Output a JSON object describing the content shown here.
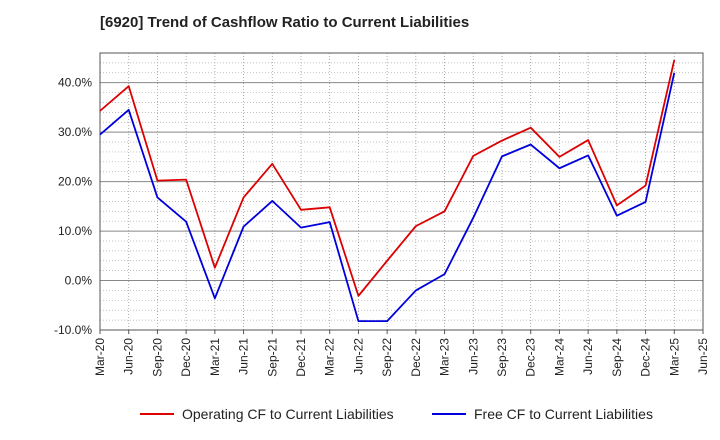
{
  "chart_data": {
    "type": "line",
    "title": "[6920]  Trend of Cashflow Ratio to Current Liabilities",
    "x": [
      "Mar-20",
      "Jun-20",
      "Sep-20",
      "Dec-20",
      "Mar-21",
      "Jun-21",
      "Sep-21",
      "Dec-21",
      "Mar-22",
      "Jun-22",
      "Sep-22",
      "Dec-22",
      "Mar-23",
      "Jun-23",
      "Sep-23",
      "Dec-23",
      "Mar-24",
      "Jun-24",
      "Sep-24",
      "Dec-24",
      "Mar-25",
      "Jun-25"
    ],
    "ylim": [
      -10,
      46
    ],
    "yticks": [
      -10,
      0,
      10,
      20,
      30,
      40
    ],
    "ytick_labels": [
      "-10.0%",
      "0.0%",
      "10.0%",
      "20.0%",
      "30.0%",
      "40.0%"
    ],
    "grid": true,
    "legend_position": "bottom",
    "series": [
      {
        "name": "Operating CF to Current Liabilities",
        "color": "#dd0000",
        "values": [
          34.3,
          39.3,
          20.2,
          20.4,
          2.6,
          16.8,
          23.6,
          14.3,
          14.8,
          -3.1,
          4.0,
          11.0,
          14.0,
          25.2,
          28.3,
          30.9,
          25.0,
          28.4,
          15.2,
          19.2,
          44.6,
          null
        ]
      },
      {
        "name": "Free CF to Current Liabilities",
        "color": "#0000dd",
        "values": [
          29.5,
          34.5,
          16.8,
          11.9,
          -3.6,
          10.9,
          16.1,
          10.7,
          11.8,
          -8.2,
          -8.2,
          -2.0,
          1.3,
          12.7,
          25.1,
          27.5,
          22.7,
          25.3,
          13.1,
          15.9,
          42.0,
          null
        ]
      }
    ]
  }
}
